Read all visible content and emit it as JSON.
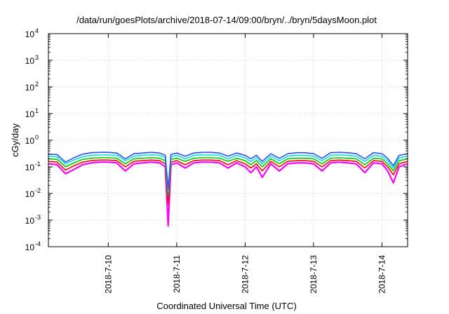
{
  "chart_data": {
    "type": "line",
    "title": "/data/run/goesPlots/archive/2018-07-14/09:00/bryn/../bryn/5daysMoon.plot",
    "xlabel": "Coordinated Universal Time (UTC)",
    "ylabel": "cGy/day",
    "y_scale": "log",
    "ylim": [
      0.0001,
      10000
    ],
    "y_ticks": [
      {
        "base": "10",
        "exp": "-4",
        "value": 0.0001
      },
      {
        "base": "10",
        "exp": "-3",
        "value": 0.001
      },
      {
        "base": "10",
        "exp": "-2",
        "value": 0.01
      },
      {
        "base": "10",
        "exp": "-1",
        "value": 0.1
      },
      {
        "base": "10",
        "exp": "0",
        "value": 1
      },
      {
        "base": "10",
        "exp": "1",
        "value": 10
      },
      {
        "base": "10",
        "exp": "2",
        "value": 100
      },
      {
        "base": "10",
        "exp": "3",
        "value": 1000
      },
      {
        "base": "10",
        "exp": "4",
        "value": 10000
      }
    ],
    "xlim": [
      "2018-07-09T03:00",
      "2018-07-14T09:00"
    ],
    "x_ticks": [
      {
        "label": "2018-7-10",
        "value": "2018-07-10T00:00"
      },
      {
        "label": "2018-7-11",
        "value": "2018-07-11T00:00"
      },
      {
        "label": "2018-7-12",
        "value": "2018-07-12T00:00"
      },
      {
        "label": "2018-7-13",
        "value": "2018-07-13T00:00"
      },
      {
        "label": "2018-7-14",
        "value": "2018-07-14T00:00"
      }
    ],
    "grid": true,
    "legend": "none",
    "series": [
      {
        "color": "#ff00ff",
        "values": [
          [
            "2018-07-09T03:00",
            0.13
          ],
          [
            "2018-07-09T06:00",
            0.12
          ],
          [
            "2018-07-09T09:00",
            0.055
          ],
          [
            "2018-07-09T12:00",
            0.08
          ],
          [
            "2018-07-09T15:00",
            0.12
          ],
          [
            "2018-07-09T18:00",
            0.14
          ],
          [
            "2018-07-09T21:00",
            0.15
          ],
          [
            "2018-07-10T00:00",
            0.15
          ],
          [
            "2018-07-10T03:00",
            0.14
          ],
          [
            "2018-07-10T06:00",
            0.07
          ],
          [
            "2018-07-10T09:00",
            0.13
          ],
          [
            "2018-07-10T12:00",
            0.14
          ],
          [
            "2018-07-10T15:00",
            0.15
          ],
          [
            "2018-07-10T18:00",
            0.14
          ],
          [
            "2018-07-10T20:00",
            0.1
          ],
          [
            "2018-07-10T21:00",
            0.0006
          ],
          [
            "2018-07-10T22:00",
            0.12
          ],
          [
            "2018-07-11T00:00",
            0.14
          ],
          [
            "2018-07-11T03:00",
            0.09
          ],
          [
            "2018-07-11T06:00",
            0.14
          ],
          [
            "2018-07-11T09:00",
            0.15
          ],
          [
            "2018-07-11T12:00",
            0.15
          ],
          [
            "2018-07-11T15:00",
            0.14
          ],
          [
            "2018-07-11T18:00",
            0.09
          ],
          [
            "2018-07-11T21:00",
            0.14
          ],
          [
            "2018-07-12T00:00",
            0.1
          ],
          [
            "2018-07-12T02:00",
            0.06
          ],
          [
            "2018-07-12T04:00",
            0.1
          ],
          [
            "2018-07-12T06:00",
            0.04
          ],
          [
            "2018-07-12T09:00",
            0.13
          ],
          [
            "2018-07-12T12:00",
            0.07
          ],
          [
            "2018-07-12T15:00",
            0.13
          ],
          [
            "2018-07-12T18:00",
            0.14
          ],
          [
            "2018-07-12T21:00",
            0.14
          ],
          [
            "2018-07-13T00:00",
            0.13
          ],
          [
            "2018-07-13T03:00",
            0.07
          ],
          [
            "2018-07-13T06:00",
            0.14
          ],
          [
            "2018-07-13T09:00",
            0.15
          ],
          [
            "2018-07-13T12:00",
            0.14
          ],
          [
            "2018-07-13T15:00",
            0.13
          ],
          [
            "2018-07-13T18:00",
            0.06
          ],
          [
            "2018-07-13T21:00",
            0.14
          ],
          [
            "2018-07-14T00:00",
            0.13
          ],
          [
            "2018-07-14T02:00",
            0.07
          ],
          [
            "2018-07-14T04:00",
            0.025
          ],
          [
            "2018-07-14T06:00",
            0.1
          ],
          [
            "2018-07-14T09:00",
            0.13
          ]
        ]
      },
      {
        "color": "#ff0000",
        "values": [
          [
            "2018-07-09T03:00",
            0.16
          ],
          [
            "2018-07-09T06:00",
            0.15
          ],
          [
            "2018-07-09T09:00",
            0.075
          ],
          [
            "2018-07-09T12:00",
            0.11
          ],
          [
            "2018-07-09T15:00",
            0.15
          ],
          [
            "2018-07-09T18:00",
            0.17
          ],
          [
            "2018-07-09T21:00",
            0.18
          ],
          [
            "2018-07-10T00:00",
            0.18
          ],
          [
            "2018-07-10T03:00",
            0.17
          ],
          [
            "2018-07-10T06:00",
            0.1
          ],
          [
            "2018-07-10T09:00",
            0.16
          ],
          [
            "2018-07-10T12:00",
            0.17
          ],
          [
            "2018-07-10T15:00",
            0.18
          ],
          [
            "2018-07-10T18:00",
            0.17
          ],
          [
            "2018-07-10T20:00",
            0.13
          ],
          [
            "2018-07-10T21:00",
            0.004
          ],
          [
            "2018-07-10T22:00",
            0.15
          ],
          [
            "2018-07-11T00:00",
            0.17
          ],
          [
            "2018-07-11T03:00",
            0.12
          ],
          [
            "2018-07-11T06:00",
            0.17
          ],
          [
            "2018-07-11T09:00",
            0.18
          ],
          [
            "2018-07-11T12:00",
            0.18
          ],
          [
            "2018-07-11T15:00",
            0.17
          ],
          [
            "2018-07-11T18:00",
            0.12
          ],
          [
            "2018-07-11T21:00",
            0.17
          ],
          [
            "2018-07-12T00:00",
            0.13
          ],
          [
            "2018-07-12T02:00",
            0.09
          ],
          [
            "2018-07-12T04:00",
            0.13
          ],
          [
            "2018-07-12T06:00",
            0.07
          ],
          [
            "2018-07-12T09:00",
            0.16
          ],
          [
            "2018-07-12T12:00",
            0.1
          ],
          [
            "2018-07-12T15:00",
            0.16
          ],
          [
            "2018-07-12T18:00",
            0.17
          ],
          [
            "2018-07-12T21:00",
            0.17
          ],
          [
            "2018-07-13T00:00",
            0.16
          ],
          [
            "2018-07-13T03:00",
            0.1
          ],
          [
            "2018-07-13T06:00",
            0.17
          ],
          [
            "2018-07-13T09:00",
            0.18
          ],
          [
            "2018-07-13T12:00",
            0.17
          ],
          [
            "2018-07-13T15:00",
            0.16
          ],
          [
            "2018-07-13T18:00",
            0.09
          ],
          [
            "2018-07-13T21:00",
            0.17
          ],
          [
            "2018-07-14T00:00",
            0.16
          ],
          [
            "2018-07-14T02:00",
            0.1
          ],
          [
            "2018-07-14T04:00",
            0.05
          ],
          [
            "2018-07-14T06:00",
            0.13
          ],
          [
            "2018-07-14T09:00",
            0.16
          ]
        ]
      },
      {
        "color": "#00c800",
        "values": [
          [
            "2018-07-09T03:00",
            0.2
          ],
          [
            "2018-07-09T06:00",
            0.19
          ],
          [
            "2018-07-09T09:00",
            0.1
          ],
          [
            "2018-07-09T12:00",
            0.14
          ],
          [
            "2018-07-09T15:00",
            0.19
          ],
          [
            "2018-07-09T18:00",
            0.21
          ],
          [
            "2018-07-09T21:00",
            0.22
          ],
          [
            "2018-07-10T00:00",
            0.22
          ],
          [
            "2018-07-10T03:00",
            0.21
          ],
          [
            "2018-07-10T06:00",
            0.13
          ],
          [
            "2018-07-10T09:00",
            0.2
          ],
          [
            "2018-07-10T12:00",
            0.21
          ],
          [
            "2018-07-10T15:00",
            0.22
          ],
          [
            "2018-07-10T18:00",
            0.21
          ],
          [
            "2018-07-10T20:00",
            0.17
          ],
          [
            "2018-07-10T21:00",
            0.008
          ],
          [
            "2018-07-10T22:00",
            0.19
          ],
          [
            "2018-07-11T00:00",
            0.21
          ],
          [
            "2018-07-11T03:00",
            0.16
          ],
          [
            "2018-07-11T06:00",
            0.21
          ],
          [
            "2018-07-11T09:00",
            0.22
          ],
          [
            "2018-07-11T12:00",
            0.22
          ],
          [
            "2018-07-11T15:00",
            0.21
          ],
          [
            "2018-07-11T18:00",
            0.16
          ],
          [
            "2018-07-11T21:00",
            0.21
          ],
          [
            "2018-07-12T00:00",
            0.17
          ],
          [
            "2018-07-12T02:00",
            0.12
          ],
          [
            "2018-07-12T04:00",
            0.17
          ],
          [
            "2018-07-12T06:00",
            0.1
          ],
          [
            "2018-07-12T09:00",
            0.2
          ],
          [
            "2018-07-12T12:00",
            0.13
          ],
          [
            "2018-07-12T15:00",
            0.2
          ],
          [
            "2018-07-12T18:00",
            0.21
          ],
          [
            "2018-07-12T21:00",
            0.21
          ],
          [
            "2018-07-13T00:00",
            0.2
          ],
          [
            "2018-07-13T03:00",
            0.13
          ],
          [
            "2018-07-13T06:00",
            0.21
          ],
          [
            "2018-07-13T09:00",
            0.22
          ],
          [
            "2018-07-13T12:00",
            0.21
          ],
          [
            "2018-07-13T15:00",
            0.2
          ],
          [
            "2018-07-13T18:00",
            0.12
          ],
          [
            "2018-07-13T21:00",
            0.21
          ],
          [
            "2018-07-14T00:00",
            0.2
          ],
          [
            "2018-07-14T02:00",
            0.13
          ],
          [
            "2018-07-14T04:00",
            0.07
          ],
          [
            "2018-07-14T06:00",
            0.17
          ],
          [
            "2018-07-14T09:00",
            0.2
          ]
        ]
      },
      {
        "color": "#00e0e0",
        "values": [
          [
            "2018-07-09T03:00",
            0.25
          ],
          [
            "2018-07-09T06:00",
            0.24
          ],
          [
            "2018-07-09T09:00",
            0.13
          ],
          [
            "2018-07-09T12:00",
            0.18
          ],
          [
            "2018-07-09T15:00",
            0.24
          ],
          [
            "2018-07-09T18:00",
            0.27
          ],
          [
            "2018-07-09T21:00",
            0.28
          ],
          [
            "2018-07-10T00:00",
            0.28
          ],
          [
            "2018-07-10T03:00",
            0.27
          ],
          [
            "2018-07-10T06:00",
            0.17
          ],
          [
            "2018-07-10T09:00",
            0.25
          ],
          [
            "2018-07-10T12:00",
            0.27
          ],
          [
            "2018-07-10T15:00",
            0.28
          ],
          [
            "2018-07-10T18:00",
            0.27
          ],
          [
            "2018-07-10T20:00",
            0.22
          ],
          [
            "2018-07-10T21:00",
            0.012
          ],
          [
            "2018-07-10T22:00",
            0.24
          ],
          [
            "2018-07-11T00:00",
            0.27
          ],
          [
            "2018-07-11T03:00",
            0.2
          ],
          [
            "2018-07-11T06:00",
            0.27
          ],
          [
            "2018-07-11T09:00",
            0.28
          ],
          [
            "2018-07-11T12:00",
            0.28
          ],
          [
            "2018-07-11T15:00",
            0.27
          ],
          [
            "2018-07-11T18:00",
            0.2
          ],
          [
            "2018-07-11T21:00",
            0.27
          ],
          [
            "2018-07-12T00:00",
            0.22
          ],
          [
            "2018-07-12T02:00",
            0.16
          ],
          [
            "2018-07-12T04:00",
            0.22
          ],
          [
            "2018-07-12T06:00",
            0.13
          ],
          [
            "2018-07-12T09:00",
            0.25
          ],
          [
            "2018-07-12T12:00",
            0.17
          ],
          [
            "2018-07-12T15:00",
            0.25
          ],
          [
            "2018-07-12T18:00",
            0.27
          ],
          [
            "2018-07-12T21:00",
            0.27
          ],
          [
            "2018-07-13T00:00",
            0.25
          ],
          [
            "2018-07-13T03:00",
            0.17
          ],
          [
            "2018-07-13T06:00",
            0.27
          ],
          [
            "2018-07-13T09:00",
            0.28
          ],
          [
            "2018-07-13T12:00",
            0.27
          ],
          [
            "2018-07-13T15:00",
            0.25
          ],
          [
            "2018-07-13T18:00",
            0.16
          ],
          [
            "2018-07-13T21:00",
            0.27
          ],
          [
            "2018-07-14T00:00",
            0.25
          ],
          [
            "2018-07-14T02:00",
            0.17
          ],
          [
            "2018-07-14T04:00",
            0.09
          ],
          [
            "2018-07-14T06:00",
            0.22
          ],
          [
            "2018-07-14T09:00",
            0.25
          ]
        ]
      },
      {
        "color": "#3050ff",
        "values": [
          [
            "2018-07-09T03:00",
            0.3
          ],
          [
            "2018-07-09T06:00",
            0.29
          ],
          [
            "2018-07-09T09:00",
            0.15
          ],
          [
            "2018-07-09T12:00",
            0.22
          ],
          [
            "2018-07-09T15:00",
            0.3
          ],
          [
            "2018-07-09T18:00",
            0.34
          ],
          [
            "2018-07-09T21:00",
            0.35
          ],
          [
            "2018-07-10T00:00",
            0.35
          ],
          [
            "2018-07-10T03:00",
            0.33
          ],
          [
            "2018-07-10T06:00",
            0.2
          ],
          [
            "2018-07-10T09:00",
            0.31
          ],
          [
            "2018-07-10T12:00",
            0.33
          ],
          [
            "2018-07-10T15:00",
            0.35
          ],
          [
            "2018-07-10T18:00",
            0.33
          ],
          [
            "2018-07-10T20:00",
            0.27
          ],
          [
            "2018-07-10T21:00",
            0.015
          ],
          [
            "2018-07-10T22:00",
            0.29
          ],
          [
            "2018-07-11T00:00",
            0.33
          ],
          [
            "2018-07-11T03:00",
            0.25
          ],
          [
            "2018-07-11T06:00",
            0.33
          ],
          [
            "2018-07-11T09:00",
            0.35
          ],
          [
            "2018-07-11T12:00",
            0.35
          ],
          [
            "2018-07-11T15:00",
            0.33
          ],
          [
            "2018-07-11T18:00",
            0.25
          ],
          [
            "2018-07-11T21:00",
            0.33
          ],
          [
            "2018-07-12T00:00",
            0.27
          ],
          [
            "2018-07-12T02:00",
            0.2
          ],
          [
            "2018-07-12T04:00",
            0.27
          ],
          [
            "2018-07-12T06:00",
            0.16
          ],
          [
            "2018-07-12T09:00",
            0.31
          ],
          [
            "2018-07-12T12:00",
            0.21
          ],
          [
            "2018-07-12T15:00",
            0.31
          ],
          [
            "2018-07-12T18:00",
            0.34
          ],
          [
            "2018-07-12T21:00",
            0.34
          ],
          [
            "2018-07-13T00:00",
            0.31
          ],
          [
            "2018-07-13T03:00",
            0.21
          ],
          [
            "2018-07-13T06:00",
            0.34
          ],
          [
            "2018-07-13T09:00",
            0.35
          ],
          [
            "2018-07-13T12:00",
            0.34
          ],
          [
            "2018-07-13T15:00",
            0.31
          ],
          [
            "2018-07-13T18:00",
            0.2
          ],
          [
            "2018-07-13T21:00",
            0.34
          ],
          [
            "2018-07-14T00:00",
            0.31
          ],
          [
            "2018-07-14T02:00",
            0.21
          ],
          [
            "2018-07-14T04:00",
            0.11
          ],
          [
            "2018-07-14T06:00",
            0.27
          ],
          [
            "2018-07-14T09:00",
            0.31
          ]
        ]
      }
    ]
  }
}
